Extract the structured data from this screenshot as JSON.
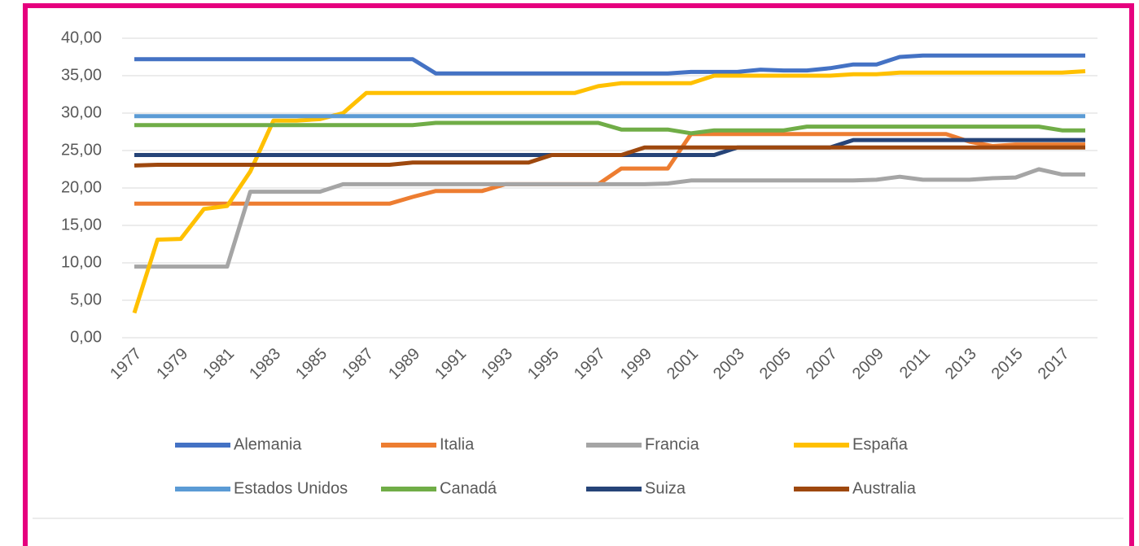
{
  "chart_data": {
    "type": "line",
    "categories": [
      "1977",
      null,
      "1979",
      null,
      "1981",
      null,
      "1983",
      null,
      "1985",
      null,
      "1987",
      null,
      "1989",
      null,
      "1991",
      null,
      "1993",
      null,
      "1995",
      null,
      "1997",
      null,
      "1999",
      null,
      "2001",
      null,
      "2003",
      null,
      "2005",
      null,
      "2007",
      null,
      "2009",
      null,
      "2011",
      null,
      "2013",
      null,
      "2015",
      null,
      "2017",
      null
    ],
    "ylim": [
      0,
      40
    ],
    "yticks": [
      {
        "value": 0,
        "label": "0,00"
      },
      {
        "value": 5,
        "label": "5,00"
      },
      {
        "value": 10,
        "label": "10,00"
      },
      {
        "value": 15,
        "label": "15,00"
      },
      {
        "value": 20,
        "label": "20,00"
      },
      {
        "value": 25,
        "label": "25,00"
      },
      {
        "value": 30,
        "label": "30,00"
      },
      {
        "value": 35,
        "label": "35,00"
      },
      {
        "value": 40,
        "label": "40,00"
      }
    ],
    "grid": true,
    "legend": "bottom",
    "series": [
      {
        "name": "Alemania",
        "color": "#4472c4",
        "values": [
          37.2,
          37.2,
          37.2,
          37.2,
          37.2,
          37.2,
          37.2,
          37.2,
          37.2,
          37.2,
          37.2,
          37.2,
          37.2,
          35.3,
          35.3,
          35.3,
          35.3,
          35.3,
          35.3,
          35.3,
          35.3,
          35.3,
          35.3,
          35.3,
          35.5,
          35.5,
          35.5,
          35.8,
          35.7,
          35.7,
          36.0,
          36.5,
          36.5,
          37.5,
          37.7,
          37.7,
          37.7,
          37.7,
          37.7,
          37.7,
          37.7,
          37.7
        ]
      },
      {
        "name": "Italia",
        "color": "#ed7d31",
        "values": [
          17.9,
          17.9,
          17.9,
          17.9,
          17.9,
          17.9,
          17.9,
          17.9,
          17.9,
          17.9,
          17.9,
          17.9,
          18.8,
          19.6,
          19.6,
          19.6,
          20.5,
          20.5,
          20.5,
          20.5,
          20.5,
          22.6,
          22.6,
          22.6,
          27.2,
          27.2,
          27.2,
          27.2,
          27.2,
          27.2,
          27.2,
          27.2,
          27.2,
          27.2,
          27.2,
          27.2,
          26.2,
          25.6,
          25.8,
          25.8,
          25.8,
          25.8
        ]
      },
      {
        "name": "Francia",
        "color": "#a5a5a5",
        "values": [
          9.5,
          9.5,
          9.5,
          9.5,
          9.5,
          19.5,
          19.5,
          19.5,
          19.5,
          20.5,
          20.5,
          20.5,
          20.5,
          20.5,
          20.5,
          20.5,
          20.5,
          20.5,
          20.5,
          20.5,
          20.5,
          20.5,
          20.5,
          20.6,
          21.0,
          21.0,
          21.0,
          21.0,
          21.0,
          21.0,
          21.0,
          21.0,
          21.1,
          21.5,
          21.1,
          21.1,
          21.1,
          21.3,
          21.4,
          22.5,
          21.8,
          21.8
        ]
      },
      {
        "name": "España",
        "color": "#ffc000",
        "values": [
          3.3,
          13.1,
          13.2,
          17.2,
          17.6,
          22.2,
          29.0,
          29.0,
          29.2,
          30.0,
          32.7,
          32.7,
          32.7,
          32.7,
          32.7,
          32.7,
          32.7,
          32.7,
          32.7,
          32.7,
          33.6,
          34.0,
          34.0,
          34.0,
          34.0,
          35.0,
          35.0,
          35.0,
          35.0,
          35.0,
          35.0,
          35.2,
          35.2,
          35.4,
          35.4,
          35.4,
          35.4,
          35.4,
          35.4,
          35.4,
          35.4,
          35.6
        ]
      },
      {
        "name": "Estados Unidos",
        "color": "#5b9bd5",
        "values": [
          29.6,
          29.6,
          29.6,
          29.6,
          29.6,
          29.6,
          29.6,
          29.6,
          29.6,
          29.6,
          29.6,
          29.6,
          29.6,
          29.6,
          29.6,
          29.6,
          29.6,
          29.6,
          29.6,
          29.6,
          29.6,
          29.6,
          29.6,
          29.6,
          29.6,
          29.6,
          29.6,
          29.6,
          29.6,
          29.6,
          29.6,
          29.6,
          29.6,
          29.6,
          29.6,
          29.6,
          29.6,
          29.6,
          29.6,
          29.6,
          29.6,
          29.6
        ]
      },
      {
        "name": "Canadá",
        "color": "#70ad47",
        "values": [
          28.4,
          28.4,
          28.4,
          28.4,
          28.4,
          28.4,
          28.4,
          28.4,
          28.4,
          28.4,
          28.4,
          28.4,
          28.4,
          28.7,
          28.7,
          28.7,
          28.7,
          28.7,
          28.7,
          28.7,
          28.7,
          27.8,
          27.8,
          27.8,
          27.3,
          27.7,
          27.7,
          27.7,
          27.7,
          28.2,
          28.2,
          28.2,
          28.2,
          28.2,
          28.2,
          28.2,
          28.2,
          28.2,
          28.2,
          28.2,
          27.7,
          27.7
        ]
      },
      {
        "name": "Suiza",
        "color": "#264478",
        "values": [
          24.4,
          24.4,
          24.4,
          24.4,
          24.4,
          24.4,
          24.4,
          24.4,
          24.4,
          24.4,
          24.4,
          24.4,
          24.4,
          24.4,
          24.4,
          24.4,
          24.4,
          24.4,
          24.4,
          24.4,
          24.4,
          24.4,
          24.4,
          24.4,
          24.4,
          24.4,
          25.4,
          25.4,
          25.4,
          25.4,
          25.4,
          26.4,
          26.4,
          26.4,
          26.4,
          26.4,
          26.4,
          26.4,
          26.4,
          26.4,
          26.4,
          26.4
        ]
      },
      {
        "name": "Australia",
        "color": "#9e480e",
        "values": [
          23.0,
          23.1,
          23.1,
          23.1,
          23.1,
          23.1,
          23.1,
          23.1,
          23.1,
          23.1,
          23.1,
          23.1,
          23.4,
          23.4,
          23.4,
          23.4,
          23.4,
          23.4,
          24.4,
          24.4,
          24.4,
          24.4,
          25.4,
          25.4,
          25.4,
          25.4,
          25.4,
          25.4,
          25.4,
          25.4,
          25.4,
          25.4,
          25.4,
          25.4,
          25.4,
          25.4,
          25.4,
          25.4,
          25.4,
          25.4,
          25.4,
          25.4
        ]
      }
    ]
  }
}
